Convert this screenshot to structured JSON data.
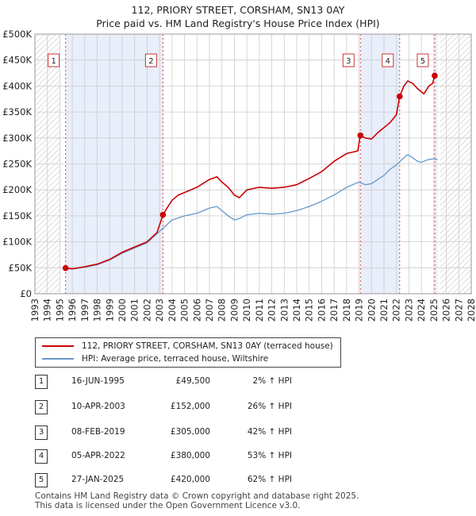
{
  "title_line1": "112, PRIORY STREET, CORSHAM, SN13 0AY",
  "title_line2": "Price paid vs. HM Land Registry's House Price Index (HPI)",
  "colors": {
    "property": "#cc0000",
    "hpi": "#6699cc",
    "shade": "#e8eefa",
    "grid": "#cccccc"
  },
  "chart_data": {
    "type": "line",
    "title": "112, PRIORY STREET, CORSHAM, SN13 0AY — Price paid vs. HM Land Registry's House Price Index (HPI)",
    "xlim": [
      1993,
      2028
    ],
    "ylim": [
      0,
      500000
    ],
    "y_ticks": [
      0,
      50000,
      100000,
      150000,
      200000,
      250000,
      300000,
      350000,
      400000,
      450000,
      500000
    ],
    "y_tick_labels": [
      "£0",
      "£50K",
      "£100K",
      "£150K",
      "£200K",
      "£250K",
      "£300K",
      "£350K",
      "£400K",
      "£450K",
      "£500K"
    ],
    "x_ticks": [
      "1993",
      "1994",
      "1995",
      "1996",
      "1997",
      "1998",
      "1999",
      "2000",
      "2001",
      "2002",
      "2003",
      "2004",
      "2005",
      "2006",
      "2007",
      "2008",
      "2009",
      "2010",
      "2011",
      "2012",
      "2013",
      "2014",
      "2015",
      "2016",
      "2017",
      "2018",
      "2019",
      "2020",
      "2021",
      "2022",
      "2023",
      "2024",
      "2025",
      "2026",
      "2027",
      "2028"
    ],
    "series": [
      {
        "name": "112, PRIORY STREET, CORSHAM, SN13 0AY (terraced house)",
        "x": [
          1995.46,
          1996,
          1997,
          1998,
          1999,
          2000,
          2001,
          2002,
          2002.8,
          2003.27,
          2003.6,
          2004,
          2004.5,
          2005,
          2006,
          2007,
          2007.6,
          2008,
          2008.5,
          2009,
          2009.4,
          2010,
          2011,
          2012,
          2013,
          2014,
          2015,
          2016,
          2017,
          2018,
          2018.9,
          2019.1,
          2019.5,
          2020,
          2020.5,
          2021,
          2021.5,
          2022.0,
          2022.26,
          2022.6,
          2022.9,
          2023.3,
          2023.7,
          2024.2,
          2024.6,
          2024.9,
          2025.07,
          2025.3
        ],
        "values": [
          49500,
          48000,
          52000,
          57000,
          66000,
          80000,
          90000,
          100000,
          118000,
          152000,
          165000,
          180000,
          190000,
          195000,
          205000,
          220000,
          225000,
          215000,
          205000,
          190000,
          185000,
          200000,
          205000,
          203000,
          205000,
          210000,
          222000,
          235000,
          255000,
          270000,
          275000,
          305000,
          300000,
          298000,
          310000,
          320000,
          330000,
          345000,
          380000,
          400000,
          410000,
          405000,
          395000,
          385000,
          400000,
          405000,
          420000,
          421000
        ]
      },
      {
        "name": "HPI: Average price, terraced house, Wiltshire",
        "x": [
          1995.46,
          1996,
          1997,
          1998,
          1999,
          2000,
          2001,
          2002,
          2003,
          2004,
          2005,
          2006,
          2007,
          2007.6,
          2008,
          2008.5,
          2009,
          2009.4,
          2010,
          2011,
          2012,
          2013,
          2014,
          2015,
          2016,
          2017,
          2018,
          2019,
          2019.5,
          2020,
          2020.5,
          2021,
          2021.5,
          2022,
          2022.5,
          2022.9,
          2023.3,
          2023.7,
          2024,
          2024.5,
          2025,
          2025.3
        ],
        "values": [
          48500,
          47500,
          51000,
          56000,
          65000,
          78000,
          88000,
          98000,
          120000,
          142000,
          150000,
          155000,
          165000,
          168000,
          160000,
          150000,
          142000,
          145000,
          152000,
          155000,
          153000,
          155000,
          160000,
          168000,
          178000,
          190000,
          205000,
          215000,
          210000,
          212000,
          220000,
          228000,
          240000,
          248000,
          260000,
          268000,
          262000,
          255000,
          253000,
          258000,
          260000,
          258000
        ]
      }
    ],
    "sales": [
      {
        "label": "1",
        "date": "16-JUN-1995",
        "x": 1995.46,
        "price": 49500
      },
      {
        "label": "2",
        "date": "10-APR-2003",
        "x": 2003.27,
        "price": 152000
      },
      {
        "label": "3",
        "date": "08-FEB-2019",
        "x": 2019.11,
        "price": 305000
      },
      {
        "label": "4",
        "date": "05-APR-2022",
        "x": 2022.26,
        "price": 380000
      },
      {
        "label": "5",
        "date": "27-JAN-2025",
        "x": 2025.07,
        "price": 420000
      }
    ],
    "shaded_spans": [
      [
        1995.46,
        2003.27
      ],
      [
        2019.11,
        2022.26
      ],
      [
        2025.07,
        2025.3
      ]
    ],
    "hatched_before": 1995.0,
    "hatched_after": 2025.5,
    "legend_position": "below-chart"
  },
  "legend": {
    "property_label": "112, PRIORY STREET, CORSHAM, SN13 0AY (terraced house)",
    "hpi_label": "HPI: Average price, terraced house, Wiltshire"
  },
  "sales_table": [
    {
      "num": "1",
      "date": "16-JUN-1995",
      "price": "£49,500",
      "hpi": "2% ↑ HPI"
    },
    {
      "num": "2",
      "date": "10-APR-2003",
      "price": "£152,000",
      "hpi": "26% ↑ HPI"
    },
    {
      "num": "3",
      "date": "08-FEB-2019",
      "price": "£305,000",
      "hpi": "42% ↑ HPI"
    },
    {
      "num": "4",
      "date": "05-APR-2022",
      "price": "£380,000",
      "hpi": "53% ↑ HPI"
    },
    {
      "num": "5",
      "date": "27-JAN-2025",
      "price": "£420,000",
      "hpi": "62% ↑ HPI"
    }
  ],
  "footer": {
    "line1": "Contains HM Land Registry data © Crown copyright and database right 2025.",
    "line2": "This data is licensed under the Open Government Licence v3.0."
  }
}
